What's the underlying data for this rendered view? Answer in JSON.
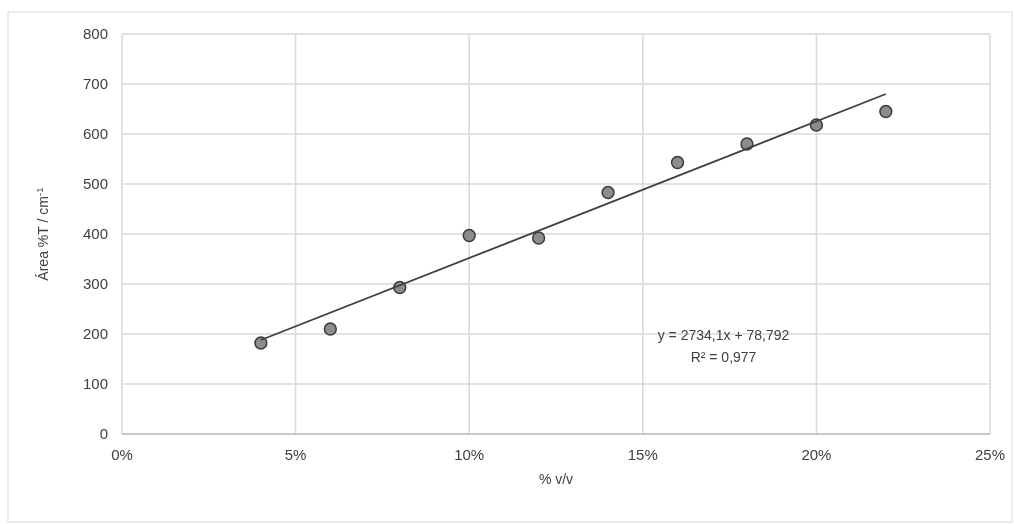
{
  "chart_data": {
    "type": "scatter",
    "xlabel": "% v/v",
    "ylabel": "Área %T / cm$^{-1}$",
    "xlim": [
      0,
      0.25
    ],
    "xticks": [
      {
        "value": 0,
        "label": "0%"
      },
      {
        "value": 0.05,
        "label": "5%"
      },
      {
        "value": 0.1,
        "label": "10%"
      },
      {
        "value": 0.15,
        "label": "15%"
      },
      {
        "value": 0.2,
        "label": "20%"
      },
      {
        "value": 0.25,
        "label": "25%"
      }
    ],
    "ylim": [
      0,
      800
    ],
    "yticks": [
      0,
      100,
      200,
      300,
      400,
      500,
      600,
      700,
      800
    ],
    "grid": true,
    "series": [
      {
        "marker": "circle",
        "color": "#8c8c8c",
        "x": [
          0.04,
          0.06,
          0.08,
          0.1,
          0.12,
          0.14,
          0.16,
          0.18,
          0.2,
          0.22
        ],
        "values": [
          182,
          210,
          293,
          397,
          392,
          483,
          543,
          580,
          618,
          645
        ]
      },
      {
        "type": "line",
        "color": "#404040",
        "x": [
          0.04,
          0.22
        ],
        "values": [
          188,
          680
        ]
      }
    ],
    "annotations": [
      "y = 2734,1x + 78,792",
      "R² = 0,977"
    ]
  }
}
